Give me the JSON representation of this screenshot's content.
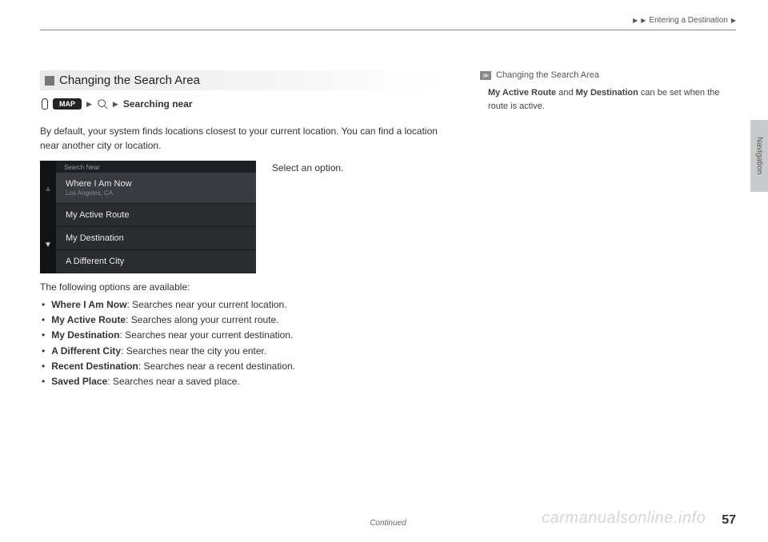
{
  "header": {
    "breadcrumb": "Entering a Destination"
  },
  "section": {
    "title": "Changing the Search Area",
    "mapLabel": "MAP",
    "searchingNear": "Searching near"
  },
  "body": {
    "p1": "By default, your system finds locations closest to your current location. You can find a location near another city or location.",
    "instruction": "Select an option.",
    "optionsIntro": "The following options are available:"
  },
  "ui": {
    "header": "Search Near",
    "items": [
      {
        "label": "Where I Am Now",
        "sub": "Los Angeles, CA"
      },
      {
        "label": "My Active Route"
      },
      {
        "label": "My Destination"
      },
      {
        "label": "A Different City"
      }
    ]
  },
  "options": [
    {
      "name": "Where I Am Now",
      "desc": ": Searches near your current location."
    },
    {
      "name": "My Active Route",
      "desc": ": Searches along your current route."
    },
    {
      "name": "My Destination",
      "desc": ": Searches near your current destination."
    },
    {
      "name": "A Different City",
      "desc": ": Searches near the city you enter."
    },
    {
      "name": "Recent Destination",
      "desc": ": Searches near a recent destination."
    },
    {
      "name": "Saved Place",
      "desc": ": Searches near a saved place."
    }
  ],
  "right": {
    "title": "Changing the Search Area",
    "body1a": "My Active Route",
    "body1b": " and ",
    "body1c": "My Destination",
    "body1d": " can be set when the route is active."
  },
  "sideTab": "Navigation",
  "footer": {
    "continued": "Continued",
    "page": "57",
    "watermark": "carmanualsonline.info"
  }
}
